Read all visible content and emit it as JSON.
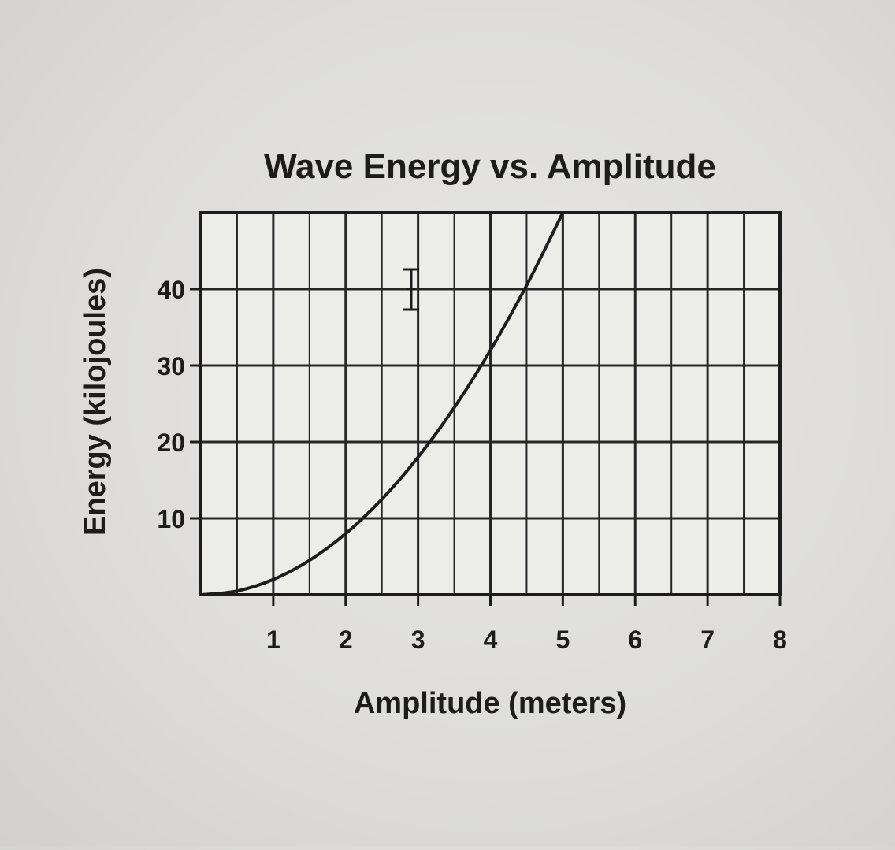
{
  "chart_data": {
    "type": "line",
    "title": "Wave Energy vs. Amplitude",
    "xlabel": "Amplitude (meters)",
    "ylabel": "Energy (kilojoules)",
    "xlim": [
      0,
      8
    ],
    "ylim": [
      0,
      50
    ],
    "x_ticks": [
      1,
      2,
      3,
      4,
      5,
      6,
      7,
      8
    ],
    "y_ticks": [
      10,
      20,
      30,
      40
    ],
    "grid": true,
    "series": [
      {
        "x": [
          0,
          0.5,
          1,
          1.5,
          2,
          2.5,
          3,
          3.5,
          4,
          4.5,
          5
        ],
        "y": [
          0,
          0.5,
          2,
          4.5,
          8,
          12.5,
          18,
          24.5,
          32,
          40.5,
          50
        ]
      }
    ]
  },
  "colors": {
    "ink": "#1c1c1c",
    "grid": "#262626",
    "plot_background": "#ecece9"
  },
  "cursor_icon": "text-cursor-icon"
}
